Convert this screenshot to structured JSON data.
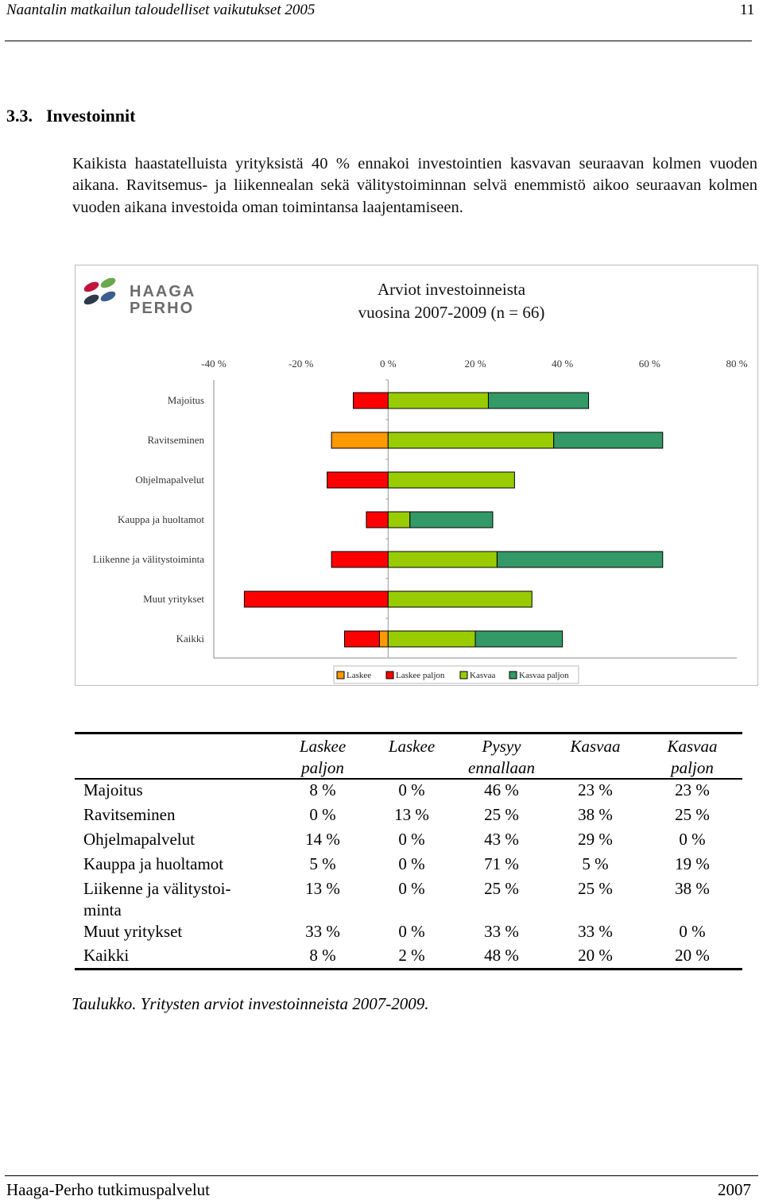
{
  "header": {
    "title": "Naantalin matkailun taloudelliset vaikutukset 2005",
    "page_number": "11"
  },
  "section": {
    "number": "3.3.",
    "title": "Investoinnit"
  },
  "paragraph": "Kaikista haastatelluista yrityksistä 40 % ennakoi investointien kasvavan seuraavan kolmen vuoden aikana. Ravitsemus- ja liikennealan sekä välitystoiminnan selvä enemmistö aikoo seuraavan kolmen vuoden aikana investoida oman toimintansa laajentamiseen.",
  "logo": {
    "line1": "HAAGA",
    "line2": "PERHO"
  },
  "chart_data": {
    "type": "bar",
    "orientation": "horizontal",
    "stacked": "diverging",
    "title_line1": "Arviot investoinneista",
    "title_line2": "vuosina 2007-2009 (n = 66)",
    "xlim": [
      -40,
      80
    ],
    "xticks": [
      -40,
      -20,
      0,
      20,
      40,
      60,
      80
    ],
    "tick_labels": [
      "-40 %",
      "-20 %",
      "0 %",
      "20 %",
      "40 %",
      "60 %",
      "80 %"
    ],
    "categories": [
      "Majoitus",
      "Ravitseminen",
      "Ohjelmapalvelut",
      "Kauppa ja huoltamot",
      "Liikenne ja välitystoiminta",
      "Muut yritykset",
      "Kaikki"
    ],
    "series": [
      {
        "name": "Laskee",
        "color": "#ff9900",
        "side": "negative",
        "values": [
          0,
          13,
          0,
          0,
          0,
          0,
          2
        ]
      },
      {
        "name": "Laskee paljon",
        "color": "#ff0000",
        "side": "negative",
        "values": [
          8,
          0,
          14,
          5,
          13,
          33,
          8
        ]
      },
      {
        "name": "Kasvaa",
        "color": "#99cc00",
        "side": "positive",
        "values": [
          23,
          38,
          29,
          5,
          25,
          33,
          20
        ]
      },
      {
        "name": "Kasvaa paljon",
        "color": "#339966",
        "side": "positive",
        "values": [
          23,
          25,
          0,
          19,
          38,
          0,
          20
        ]
      }
    ],
    "legend_order": [
      0,
      1,
      2,
      3
    ],
    "legend_position": "bottom"
  },
  "table": {
    "headers": [
      [
        "Laskee",
        "paljon"
      ],
      [
        "Laskee",
        ""
      ],
      [
        "Pysyy",
        "ennallaan"
      ],
      [
        "Kasvaa",
        ""
      ],
      [
        "Kasvaa",
        "paljon"
      ]
    ],
    "rows": [
      {
        "label": "Majoitus",
        "values": [
          "8 %",
          "0 %",
          "46 %",
          "23 %",
          "23 %"
        ]
      },
      {
        "label": "Ravitseminen",
        "values": [
          "0 %",
          "13 %",
          "25 %",
          "38 %",
          "25 %"
        ]
      },
      {
        "label": "Ohjelmapalvelut",
        "values": [
          "14 %",
          "0 %",
          "43 %",
          "29 %",
          "0 %"
        ]
      },
      {
        "label": "Kauppa ja huoltamot",
        "values": [
          "5 %",
          "0 %",
          "71 %",
          "5 %",
          "19 %"
        ]
      },
      {
        "label": "Liikenne ja välitystoi-",
        "label2": "minta",
        "values": [
          "13 %",
          "0 %",
          "25 %",
          "25 %",
          "38 %"
        ]
      },
      {
        "label": "Muut yritykset",
        "values": [
          "33 %",
          "0 %",
          "33 %",
          "33 %",
          "0 %"
        ]
      },
      {
        "label": "Kaikki",
        "values": [
          "8 %",
          "2 %",
          "48 %",
          "20 %",
          "20 %"
        ]
      }
    ]
  },
  "caption": "Taulukko. Yritysten arviot investoinneista  2007-2009.",
  "footer": {
    "left": "Haaga-Perho tutkimuspalvelut",
    "right": "2007"
  }
}
